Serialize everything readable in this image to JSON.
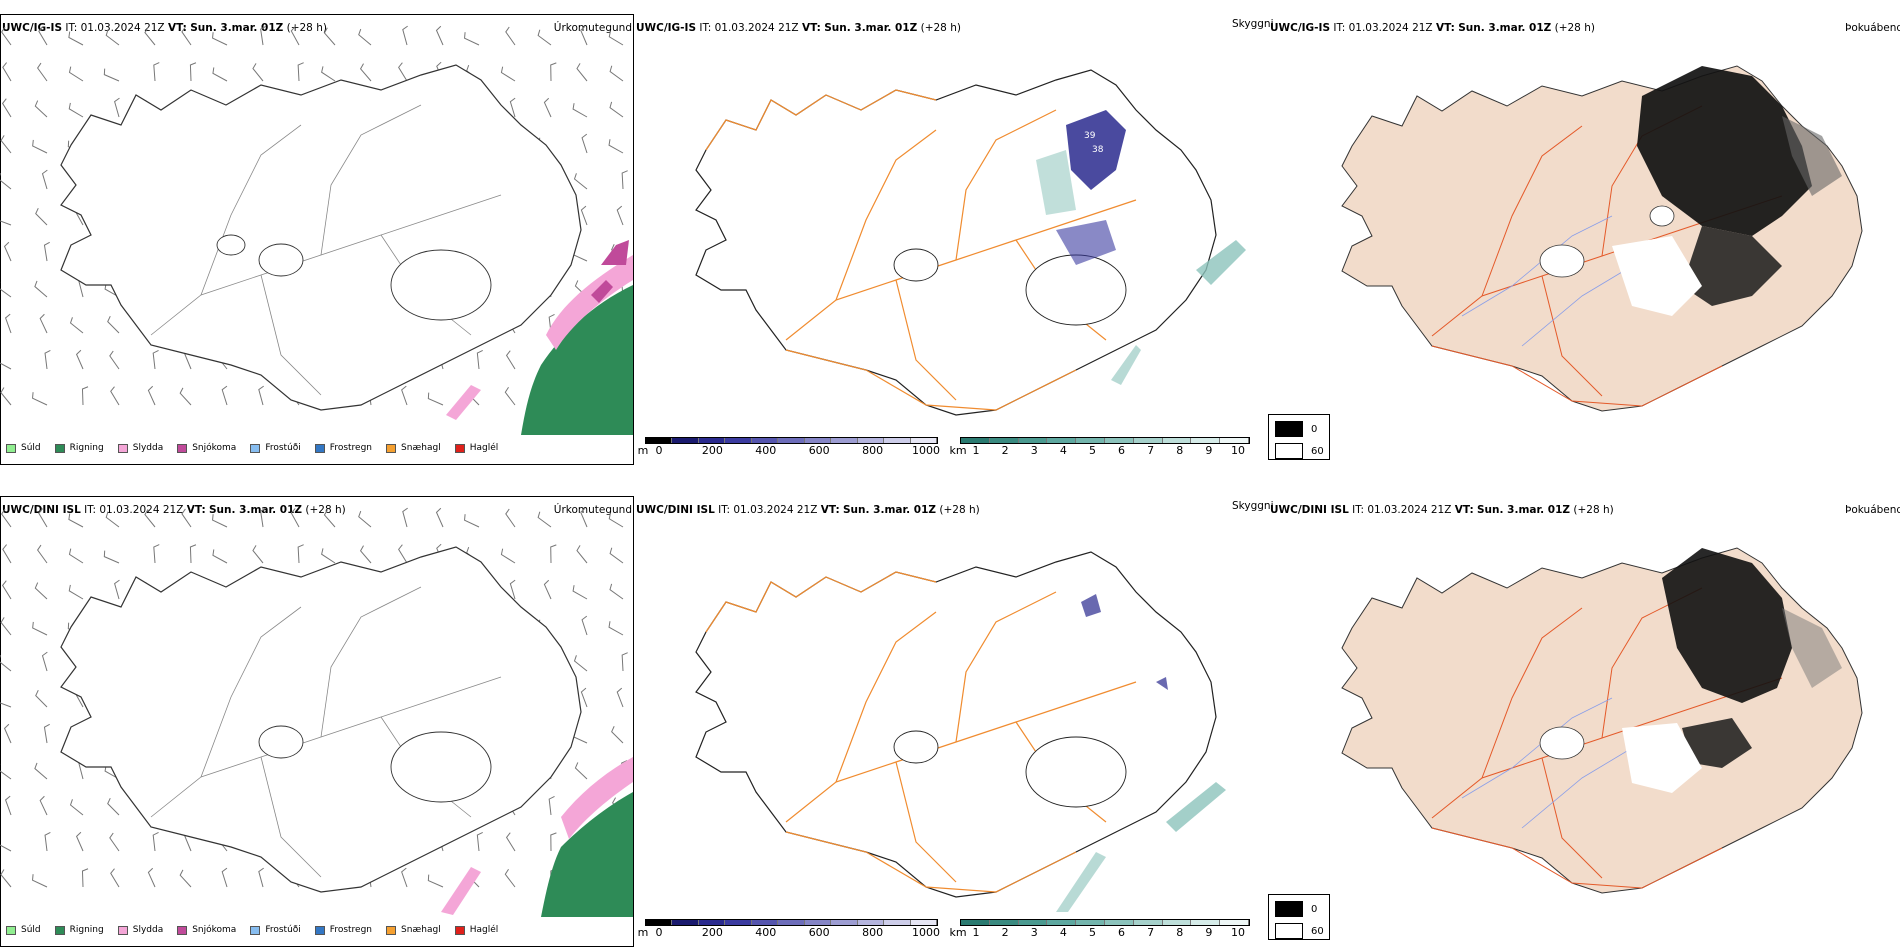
{
  "rows": [
    {
      "model": "UWC/IG-IS",
      "it_label": "IT:",
      "it_value": "01.03.2024 21Z",
      "vt_label": "VT:",
      "vt_value": "Sun. 3.mar. 01Z",
      "lead": "(+28 h)"
    },
    {
      "model": "UWC/DINI ISL",
      "it_label": "IT:",
      "it_value": "01.03.2024 21Z",
      "vt_label": "VT:",
      "vt_value": "Sun. 3.mar. 01Z",
      "lead": "(+28 h)"
    }
  ],
  "panel_titles": {
    "precip_type": "Úrkomutegund",
    "cloud_ceiling": "Skyggni",
    "fog": "Þokuábendi"
  },
  "precip_legend": [
    {
      "label": "Súld",
      "color": "#90ee90"
    },
    {
      "label": "Rigning",
      "color": "#2e8b57"
    },
    {
      "label": "Slydda",
      "color": "#f4a6d7"
    },
    {
      "label": "Snjókoma",
      "color": "#c04a9a"
    },
    {
      "label": "Frostúði",
      "color": "#87bdf0"
    },
    {
      "label": "Frostregn",
      "color": "#3377c4"
    },
    {
      "label": "Snæhagl",
      "color": "#f5a030"
    },
    {
      "label": "Haglél",
      "color": "#e0201a"
    }
  ],
  "scale_m": {
    "unit": "m",
    "ticks": [
      "0",
      "200",
      "400",
      "600",
      "800",
      "1000"
    ],
    "colors": [
      "#000000",
      "#1a1a6e",
      "#2a2a8e",
      "#3b3ba0",
      "#5555ae",
      "#6d6dba",
      "#8585c6",
      "#9d9dd2",
      "#b5b5de",
      "#cdcde9",
      "#e6e6f4"
    ]
  },
  "scale_km": {
    "unit": "km",
    "ticks": [
      "1",
      "2",
      "3",
      "4",
      "5",
      "6",
      "7",
      "8",
      "9",
      "10"
    ],
    "colors": [
      "#2a7a70",
      "#3a8a80",
      "#4b9a90",
      "#5ea8a0",
      "#74b5ad",
      "#8cc3bc",
      "#a6d1cb",
      "#bedfda",
      "#d6ece9",
      "#eef7f6"
    ]
  },
  "fog_legend": [
    {
      "label": "0",
      "color": "#000000"
    },
    {
      "label": "60",
      "color": "#ffffff"
    }
  ],
  "map_marks": [
    "39",
    "38"
  ]
}
